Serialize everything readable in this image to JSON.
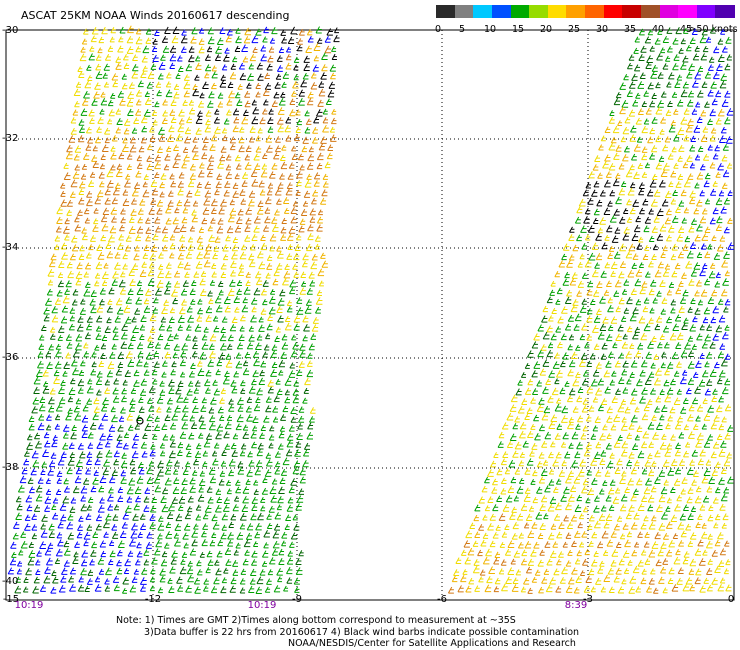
{
  "title": "ASCAT 25KM NOAA Winds 20160617 descending",
  "legend": {
    "unit_label": ">50 knots",
    "tick_labels": [
      "0",
      "5",
      "10",
      "15",
      "20",
      "25",
      "30",
      "35",
      "40",
      "45"
    ],
    "colors": [
      "#2a2a2a",
      "#808080",
      "#00c8ff",
      "#0050ff",
      "#00aa00",
      "#96dc00",
      "#ffdc00",
      "#ffa000",
      "#ff6400",
      "#ff0000",
      "#c80000",
      "#a05028",
      "#e000e0",
      "#ff00ff",
      "#8000ff",
      "#5000b0"
    ]
  },
  "lat_labels": [
    "-30",
    "-32",
    "-34",
    "-36",
    "-38",
    "-40"
  ],
  "lon_labels": [
    "-15",
    "-12",
    "-9",
    "-6",
    "-3",
    "0"
  ],
  "time_labels": [
    "10:19",
    "10:19",
    "8:39"
  ],
  "notes": [
    "Note: 1) Times are GMT 2)Times along bottom correspond to measurement at ~35S",
    "3)Data buffer is 22 hrs from 20160617 4) Black wind barbs indicate possible contamination",
    "NOAA/NESDIS/Center for Satellite Applications and Research"
  ],
  "wind_colors": {
    "black": "#000000",
    "blue": "#0000ff",
    "green": "#00a000",
    "dark_green": "#006400",
    "yellow": "#f0dc00",
    "light_orange": "#f0b400",
    "orange": "#d27814"
  }
}
